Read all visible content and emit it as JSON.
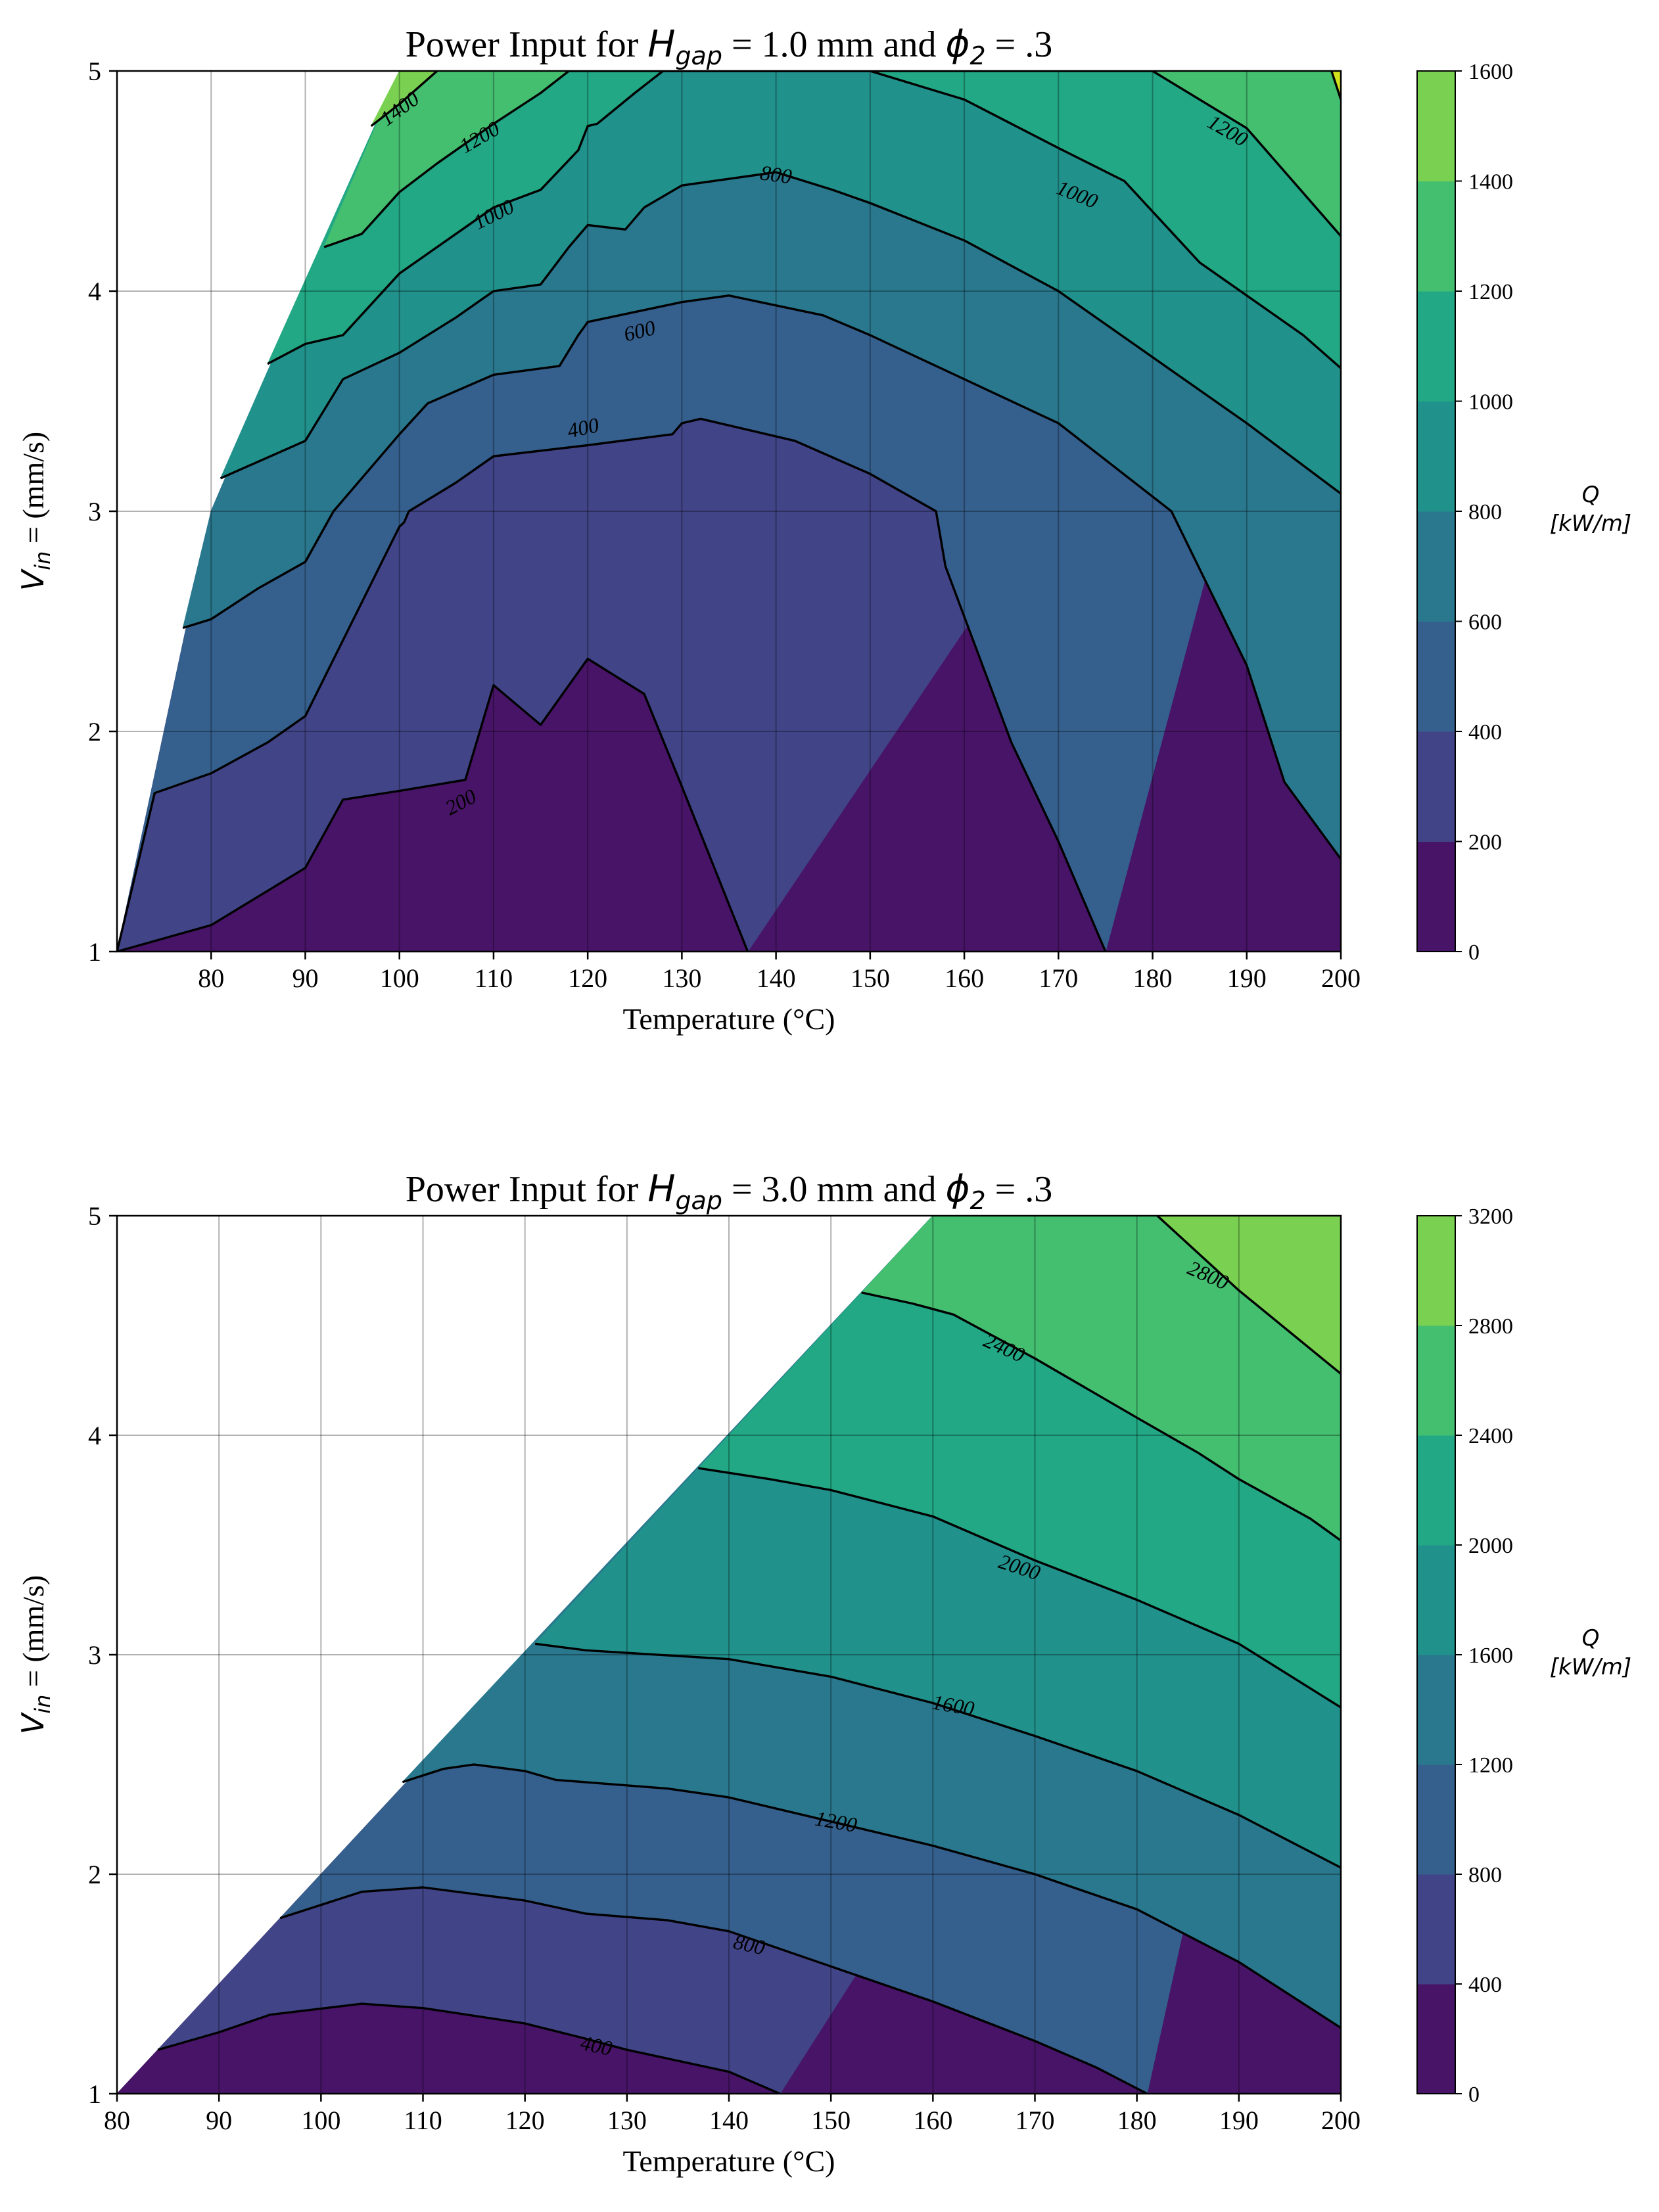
{
  "colors": [
    "#481467",
    "#414487",
    "#355f8d",
    "#2a788e",
    "#21918c",
    "#22a884",
    "#44bf70",
    "#7ad151",
    "#d2e21b"
  ],
  "chart_data": [
    {
      "type": "contour",
      "title_prefix": "Power Input for ",
      "title_var": "H",
      "title_sub": "gap",
      "title_mid": " = 1.0 mm and ",
      "title_var2": "ϕ",
      "title_sub2": "2",
      "title_suffix": " = .3",
      "xlabel": "Temperature (°C)",
      "ylabel_var": "V",
      "ylabel_sub": "in",
      "ylabel_rest": " = (mm/s)",
      "xlim": [
        70,
        200
      ],
      "ylim": [
        1,
        5
      ],
      "xticks": [
        80,
        90,
        100,
        110,
        120,
        130,
        140,
        150,
        160,
        170,
        180,
        190,
        200
      ],
      "yticks": [
        1,
        2,
        3,
        4,
        5
      ],
      "colorbar_label_1": "Q",
      "colorbar_label_2": "[kW/m]",
      "levels": [
        0,
        200,
        400,
        600,
        800,
        1000,
        1200,
        1400,
        1600
      ],
      "domain_boundary": [
        [
          70,
          1
        ],
        [
          80,
          3
        ],
        [
          100,
          5
        ]
      ],
      "contours": [
        {
          "level": 200,
          "points": [
            [
              70,
              1
            ],
            [
              80,
              1.12
            ],
            [
              90,
              1.38
            ],
            [
              94,
              1.69
            ],
            [
              100,
              1.73
            ],
            [
              107,
              1.78
            ],
            [
              110,
              2.21
            ],
            [
              115,
              2.03
            ],
            [
              120,
              2.33
            ],
            [
              126,
              2.17
            ],
            [
              130,
              1.75
            ],
            [
              137,
              1.0
            ]
          ]
        },
        {
          "level": 400,
          "points": [
            [
              70,
              1
            ],
            [
              74,
              1.72
            ],
            [
              80,
              1.81
            ],
            [
              86,
              1.95
            ],
            [
              90,
              2.07
            ],
            [
              95,
              2.5
            ],
            [
              100,
              2.93
            ],
            [
              100.5,
              2.95
            ],
            [
              101,
              3.0
            ],
            [
              106,
              3.13
            ],
            [
              110,
              3.25
            ],
            [
              120,
              3.3
            ],
            [
              129,
              3.35
            ],
            [
              130,
              3.4
            ],
            [
              132,
              3.42
            ],
            [
              142,
              3.32
            ],
            [
              150,
              3.17
            ],
            [
              157,
              3.0
            ],
            [
              158,
              2.75
            ],
            [
              165,
              1.95
            ],
            [
              170,
              1.5
            ],
            [
              175,
              1.0
            ]
          ]
        },
        {
          "level": 600,
          "points": [
            [
              77,
              2.47
            ],
            [
              80,
              2.51
            ],
            [
              85,
              2.65
            ],
            [
              90,
              2.77
            ],
            [
              93,
              3.0
            ],
            [
              100,
              3.35
            ],
            [
              103,
              3.49
            ],
            [
              110,
              3.62
            ],
            [
              117,
              3.66
            ],
            [
              119,
              3.8
            ],
            [
              120,
              3.86
            ],
            [
              130,
              3.95
            ],
            [
              135,
              3.98
            ],
            [
              145,
              3.89
            ],
            [
              150,
              3.8
            ],
            [
              160,
              3.6
            ],
            [
              170,
              3.4
            ],
            [
              182,
              3.0
            ],
            [
              190,
              2.3
            ],
            [
              194,
              1.77
            ],
            [
              200,
              1.42
            ]
          ]
        },
        {
          "level": 800,
          "points": [
            [
              81,
              3.15
            ],
            [
              90,
              3.32
            ],
            [
              94,
              3.6
            ],
            [
              100,
              3.72
            ],
            [
              106,
              3.88
            ],
            [
              110,
              4.0
            ],
            [
              115,
              4.03
            ],
            [
              118,
              4.2
            ],
            [
              120,
              4.3
            ],
            [
              124,
              4.28
            ],
            [
              126,
              4.38
            ],
            [
              130,
              4.48
            ],
            [
              140,
              4.54
            ],
            [
              146,
              4.46
            ],
            [
              150,
              4.4
            ],
            [
              160,
              4.23
            ],
            [
              170,
              4.0
            ],
            [
              180,
              3.7
            ],
            [
              190,
              3.4
            ],
            [
              200,
              3.08
            ]
          ]
        },
        {
          "level": 1000,
          "points": [
            [
              86,
              3.67
            ],
            [
              90,
              3.76
            ],
            [
              94,
              3.8
            ],
            [
              100,
              4.08
            ],
            [
              108,
              4.32
            ],
            [
              110,
              4.38
            ],
            [
              115,
              4.46
            ],
            [
              119,
              4.64
            ],
            [
              120,
              4.75
            ],
            [
              121,
              4.76
            ],
            [
              125,
              4.9
            ],
            [
              128,
              5.0
            ],
            [
              150,
              5.0
            ],
            [
              160,
              4.87
            ],
            [
              170,
              4.65
            ],
            [
              177,
              4.5
            ],
            [
              185,
              4.13
            ],
            [
              190,
              3.98
            ],
            [
              196,
              3.8
            ],
            [
              200,
              3.65
            ]
          ]
        },
        {
          "level": 1200,
          "points": [
            [
              92,
              4.2
            ],
            [
              96,
              4.26
            ],
            [
              100,
              4.45
            ],
            [
              104,
              4.58
            ],
            [
              110,
              4.76
            ],
            [
              115,
              4.9
            ],
            [
              118,
              5.0
            ],
            [
              180,
              5.0
            ],
            [
              190,
              4.74
            ],
            [
              200,
              4.25
            ]
          ]
        },
        {
          "level": 1400,
          "points": [
            [
              97,
              4.75
            ],
            [
              100,
              4.85
            ],
            [
              104,
              5.0
            ]
          ]
        },
        {
          "level": 1600,
          "points": [
            [
              199,
              5.0
            ],
            [
              200,
              4.87
            ]
          ]
        }
      ],
      "contour_labels": [
        {
          "text": "200",
          "x": 106.5,
          "y": 1.68,
          "angle": -28
        },
        {
          "text": "400",
          "x": 119.5,
          "y": 3.38,
          "angle": -12
        },
        {
          "text": "600",
          "x": 125.5,
          "y": 3.82,
          "angle": -14
        },
        {
          "text": "800",
          "x": 140,
          "y": 4.53,
          "angle": 8
        },
        {
          "text": "1000",
          "x": 110,
          "y": 4.35,
          "angle": -26
        },
        {
          "text": "1000",
          "x": 172,
          "y": 4.44,
          "angle": 22
        },
        {
          "text": "1200",
          "x": 108.5,
          "y": 4.7,
          "angle": -30
        },
        {
          "text": "1200",
          "x": 188,
          "y": 4.73,
          "angle": 30
        },
        {
          "text": "1400",
          "x": 100,
          "y": 4.83,
          "angle": -36
        }
      ]
    },
    {
      "type": "contour",
      "title_prefix": "Power Input for ",
      "title_var": "H",
      "title_sub": "gap",
      "title_mid": " = 3.0 mm and ",
      "title_var2": "ϕ",
      "title_sub2": "2",
      "title_suffix": " = .3",
      "xlabel": "Temperature (°C)",
      "ylabel_var": "V",
      "ylabel_sub": "in",
      "ylabel_rest": " = (mm/s)",
      "xlim": [
        80,
        200
      ],
      "ylim": [
        1,
        5
      ],
      "xticks": [
        80,
        90,
        100,
        110,
        120,
        130,
        140,
        150,
        160,
        170,
        180,
        190,
        200
      ],
      "yticks": [
        1,
        2,
        3,
        4,
        5
      ],
      "colorbar_label_1": "Q",
      "colorbar_label_2": "[kW/m]",
      "levels": [
        0,
        400,
        800,
        1200,
        1600,
        2000,
        2400,
        2800,
        3200
      ],
      "domain_boundary": [
        [
          80,
          1
        ],
        [
          160,
          5
        ]
      ],
      "contours": [
        {
          "level": 400,
          "points": [
            [
              84,
              1.2
            ],
            [
              90,
              1.28
            ],
            [
              95,
              1.36
            ],
            [
              104,
              1.41
            ],
            [
              110,
              1.39
            ],
            [
              120,
              1.32
            ],
            [
              126,
              1.25
            ],
            [
              130,
              1.2
            ],
            [
              140,
              1.1
            ],
            [
              145,
              1.0
            ]
          ]
        },
        {
          "level": 800,
          "points": [
            [
              96,
              1.8
            ],
            [
              104,
              1.92
            ],
            [
              110,
              1.94
            ],
            [
              120,
              1.88
            ],
            [
              126,
              1.82
            ],
            [
              134,
              1.79
            ],
            [
              140,
              1.74
            ],
            [
              150,
              1.58
            ],
            [
              160,
              1.42
            ],
            [
              170,
              1.24
            ],
            [
              176,
              1.12
            ],
            [
              181,
              1.0
            ]
          ]
        },
        {
          "level": 1200,
          "points": [
            [
              108,
              2.42
            ],
            [
              112,
              2.48
            ],
            [
              115,
              2.5
            ],
            [
              120,
              2.47
            ],
            [
              123,
              2.43
            ],
            [
              134,
              2.39
            ],
            [
              140,
              2.35
            ],
            [
              150,
              2.24
            ],
            [
              160,
              2.13
            ],
            [
              170,
              2.0
            ],
            [
              180,
              1.84
            ],
            [
              190,
              1.6
            ],
            [
              200,
              1.3
            ]
          ]
        },
        {
          "level": 1600,
          "points": [
            [
              121,
              3.05
            ],
            [
              126,
              3.02
            ],
            [
              140,
              2.98
            ],
            [
              150,
              2.9
            ],
            [
              160,
              2.78
            ],
            [
              170,
              2.63
            ],
            [
              180,
              2.47
            ],
            [
              190,
              2.27
            ],
            [
              200,
              2.03
            ]
          ]
        },
        {
          "level": 2000,
          "points": [
            [
              137,
              3.85
            ],
            [
              144,
              3.8
            ],
            [
              150,
              3.75
            ],
            [
              160,
              3.63
            ],
            [
              170,
              3.43
            ],
            [
              180,
              3.25
            ],
            [
              190,
              3.05
            ],
            [
              200,
              2.76
            ]
          ]
        },
        {
          "level": 2400,
          "points": [
            [
              153,
              4.65
            ],
            [
              158,
              4.6
            ],
            [
              162,
              4.55
            ],
            [
              170,
              4.35
            ],
            [
              180,
              4.08
            ],
            [
              186,
              3.92
            ],
            [
              190,
              3.8
            ],
            [
              197,
              3.62
            ],
            [
              200,
              3.52
            ]
          ]
        },
        {
          "level": 2800,
          "points": [
            [
              182,
              5.0
            ],
            [
              190,
              4.66
            ],
            [
              200,
              4.28
            ]
          ]
        }
      ],
      "contour_labels": [
        {
          "text": "400",
          "x": 127,
          "y": 1.22,
          "angle": 12
        },
        {
          "text": "800",
          "x": 142,
          "y": 1.68,
          "angle": 12
        },
        {
          "text": "1200",
          "x": 150.5,
          "y": 2.24,
          "angle": 10
        },
        {
          "text": "1600",
          "x": 162,
          "y": 2.77,
          "angle": 10
        },
        {
          "text": "2000",
          "x": 168.5,
          "y": 3.4,
          "angle": 18
        },
        {
          "text": "2400",
          "x": 167,
          "y": 4.4,
          "angle": 24
        },
        {
          "text": "2800",
          "x": 187,
          "y": 4.73,
          "angle": 24
        }
      ]
    }
  ]
}
